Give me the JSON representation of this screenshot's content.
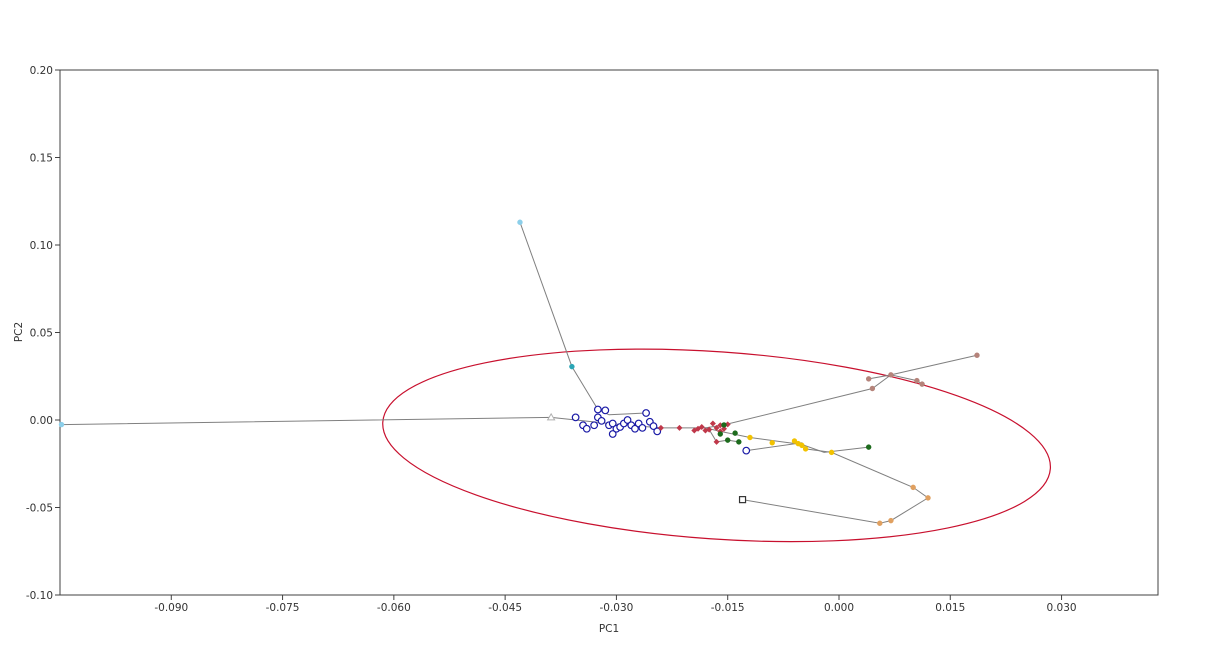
{
  "chart_data": {
    "type": "scatter",
    "title": "",
    "xlabel": "PC1",
    "ylabel": "PC2",
    "xlim": [
      -0.105,
      0.043
    ],
    "ylim": [
      -0.1,
      0.2
    ],
    "grid": false,
    "x_ticks": [
      -0.09,
      -0.075,
      -0.06,
      -0.045,
      -0.03,
      -0.015,
      0.0,
      0.015,
      0.03
    ],
    "x_tick_labels": [
      "-0.090",
      "-0.075",
      "-0.060",
      "-0.045",
      "-0.030",
      "-0.015",
      "0.000",
      "0.015",
      "0.030"
    ],
    "y_ticks": [
      -0.1,
      -0.05,
      0.0,
      0.05,
      0.1,
      0.15,
      0.2
    ],
    "y_tick_labels": [
      "-0.10",
      "-0.05",
      "0.00",
      "0.05",
      "0.10",
      "0.15",
      "0.20"
    ],
    "ellipse": {
      "center": [
        -0.0165,
        -0.0145
      ],
      "semi_axis_x": 0.0451,
      "semi_axis_y": 0.0535,
      "color": "#c8102e"
    },
    "path_color": "#808080",
    "paths": [
      [
        [
          -0.1048,
          -0.0026
        ],
        [
          -0.0388,
          0.0015
        ],
        [
          -0.031,
          -0.002
        ],
        [
          -0.024,
          -0.0045
        ],
        [
          -0.018,
          -0.0045
        ],
        [
          -0.0155,
          -0.0028
        ],
        [
          0.0045,
          0.018
        ],
        [
          0.007,
          0.0258
        ],
        [
          0.0186,
          0.037
        ]
      ],
      [
        [
          -0.043,
          0.113
        ],
        [
          -0.036,
          0.0305
        ],
        [
          -0.0325,
          0.006
        ],
        [
          -0.031,
          0.003
        ],
        [
          -0.026,
          0.004
        ]
      ],
      [
        [
          -0.0185,
          -0.004
        ],
        [
          -0.016,
          -0.0065
        ],
        [
          -0.012,
          -0.01
        ],
        [
          -0.005,
          -0.014
        ],
        [
          -0.002,
          -0.0185
        ],
        [
          0.004,
          -0.0155
        ]
      ],
      [
        [
          -0.0125,
          -0.0175
        ],
        [
          -0.005,
          -0.013
        ],
        [
          -0.0045,
          -0.0165
        ],
        [
          -0.001,
          -0.0185
        ],
        [
          0.01,
          -0.0385
        ],
        [
          0.012,
          -0.0445
        ],
        [
          0.007,
          -0.0575
        ],
        [
          0.0055,
          -0.059
        ],
        [
          -0.013,
          -0.0455
        ]
      ],
      [
        [
          -0.0175,
          -0.0055
        ],
        [
          -0.0165,
          -0.0125
        ],
        [
          -0.015,
          -0.0115
        ],
        [
          -0.0135,
          -0.0125
        ]
      ],
      [
        [
          0.004,
          0.0235
        ],
        [
          0.007,
          0.0258
        ],
        [
          0.0105,
          0.0225
        ],
        [
          0.0112,
          0.0205
        ]
      ]
    ],
    "series": [
      {
        "marker": "open-circle",
        "color": "#1a1aa6",
        "points": [
          [
            -0.0355,
            0.0015
          ],
          [
            -0.0345,
            -0.003
          ],
          [
            -0.034,
            -0.005
          ],
          [
            -0.033,
            -0.003
          ],
          [
            -0.0325,
            0.0015
          ],
          [
            -0.0325,
            0.006
          ],
          [
            -0.032,
            -0.0005
          ],
          [
            -0.0315,
            0.0055
          ],
          [
            -0.031,
            -0.003
          ],
          [
            -0.0305,
            -0.002
          ],
          [
            -0.0305,
            -0.008
          ],
          [
            -0.03,
            -0.005
          ],
          [
            -0.0295,
            -0.004
          ],
          [
            -0.029,
            -0.002
          ],
          [
            -0.0285,
            0.0
          ],
          [
            -0.028,
            -0.003
          ],
          [
            -0.0275,
            -0.005
          ],
          [
            -0.027,
            -0.002
          ],
          [
            -0.0265,
            -0.0045
          ],
          [
            -0.026,
            0.004
          ],
          [
            -0.0255,
            -0.001
          ],
          [
            -0.025,
            -0.0035
          ],
          [
            -0.0245,
            -0.0065
          ],
          [
            -0.0125,
            -0.0175
          ]
        ]
      },
      {
        "marker": "diamond",
        "color": "#c0384a",
        "points": [
          [
            -0.024,
            -0.0045
          ],
          [
            -0.0215,
            -0.0045
          ],
          [
            -0.0195,
            -0.006
          ],
          [
            -0.019,
            -0.005
          ],
          [
            -0.0185,
            -0.004
          ],
          [
            -0.018,
            -0.006
          ],
          [
            -0.0175,
            -0.0055
          ],
          [
            -0.017,
            -0.002
          ],
          [
            -0.0165,
            -0.0045
          ],
          [
            -0.016,
            -0.003
          ],
          [
            -0.016,
            -0.0065
          ],
          [
            -0.0155,
            -0.005
          ],
          [
            -0.015,
            -0.0025
          ],
          [
            -0.0165,
            -0.0125
          ]
        ]
      },
      {
        "marker": "filled-circle",
        "color": "#1d6b1d",
        "points": [
          [
            -0.0155,
            -0.0028
          ],
          [
            -0.016,
            -0.008
          ],
          [
            -0.015,
            -0.0115
          ],
          [
            -0.014,
            -0.0075
          ],
          [
            -0.0135,
            -0.0125
          ],
          [
            0.004,
            -0.0155
          ]
        ]
      },
      {
        "marker": "filled-circle",
        "color": "#f2c200",
        "points": [
          [
            -0.012,
            -0.01
          ],
          [
            -0.009,
            -0.013
          ],
          [
            -0.006,
            -0.012
          ],
          [
            -0.0055,
            -0.0135
          ],
          [
            -0.005,
            -0.0145
          ],
          [
            -0.0045,
            -0.0165
          ],
          [
            -0.001,
            -0.0185
          ]
        ]
      },
      {
        "marker": "filled-circle",
        "color": "#b5837a",
        "points": [
          [
            0.004,
            0.0235
          ],
          [
            0.0045,
            0.018
          ],
          [
            0.007,
            0.0258
          ],
          [
            0.0105,
            0.0225
          ],
          [
            0.0112,
            0.0205
          ],
          [
            0.0186,
            0.037
          ]
        ]
      },
      {
        "marker": "filled-circle",
        "color": "#e0a060",
        "points": [
          [
            0.01,
            -0.0385
          ],
          [
            0.012,
            -0.0445
          ],
          [
            0.007,
            -0.0575
          ],
          [
            0.0055,
            -0.059
          ]
        ]
      },
      {
        "marker": "filled-circle",
        "color": "#2aa5b5",
        "points": [
          [
            -0.036,
            0.0305
          ]
        ]
      },
      {
        "marker": "filled-circle",
        "color": "#8ccfea",
        "points": [
          [
            -0.043,
            0.113
          ],
          [
            -0.1048,
            -0.0026
          ]
        ]
      },
      {
        "marker": "open-triangle",
        "color": "#b0b0b0",
        "points": [
          [
            -0.0388,
            0.0015
          ]
        ]
      },
      {
        "marker": "open-square",
        "color": "#333333",
        "points": [
          [
            -0.013,
            -0.0455
          ]
        ]
      }
    ]
  }
}
